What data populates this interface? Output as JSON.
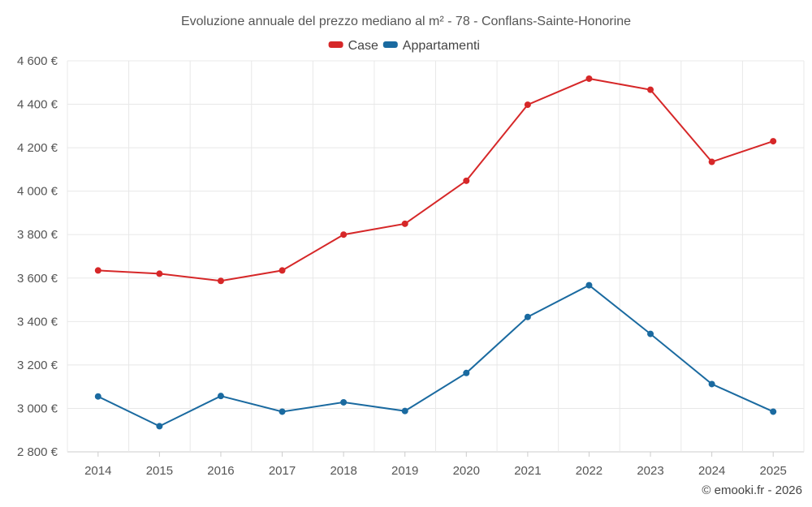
{
  "chart_data": {
    "type": "line",
    "title": "Evoluzione annuale del prezzo mediano al m² - 78 - Conflans-Sainte-Honorine",
    "xlabel": "",
    "ylabel": "",
    "categories": [
      "2014",
      "2015",
      "2016",
      "2017",
      "2018",
      "2019",
      "2020",
      "2021",
      "2022",
      "2023",
      "2024",
      "2025"
    ],
    "ylim": [
      2800,
      4600
    ],
    "yticks": [
      2800,
      3000,
      3200,
      3400,
      3600,
      3800,
      4000,
      4200,
      4400,
      4600
    ],
    "ytick_labels": [
      "2 800 €",
      "3 000 €",
      "3 200 €",
      "3 400 €",
      "3 600 €",
      "3 800 €",
      "4 000 €",
      "4 200 €",
      "4 400 €",
      "4 600 €"
    ],
    "grid": true,
    "legend_position": "top-center",
    "series": [
      {
        "name": "Case",
        "color": "#d62728",
        "values": [
          3635,
          3620,
          3587,
          3635,
          3800,
          3850,
          4048,
          4398,
          4518,
          4467,
          4135,
          4230
        ]
      },
      {
        "name": "Appartamenti",
        "color": "#1a6aa0",
        "values": [
          3055,
          2918,
          3057,
          2985,
          3028,
          2988,
          3163,
          3421,
          3567,
          3343,
          3112,
          2985
        ]
      }
    ]
  },
  "credit": "© emooki.fr - 2026"
}
